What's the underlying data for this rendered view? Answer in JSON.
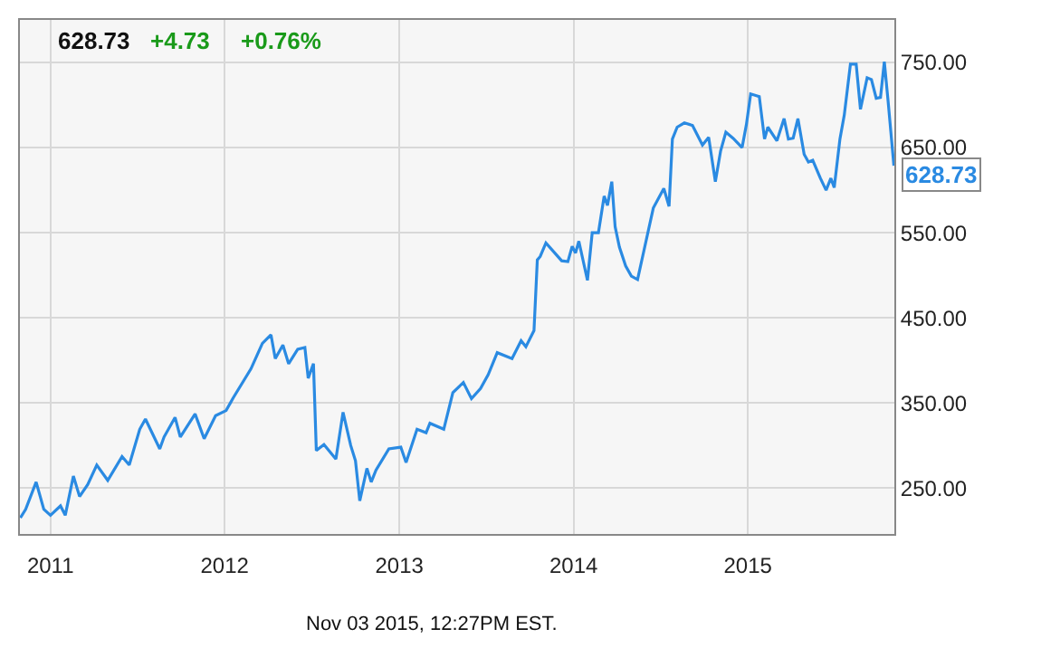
{
  "chart_data": {
    "type": "line",
    "annotations": [
      "628.73",
      "+4.73",
      "+0.76%",
      "Nov 03 2015, 12:27PM EST."
    ],
    "x": [
      "2010-10-30",
      "2010-11-10",
      "2010-12-02",
      "2010-12-18",
      "2011-01-01",
      "2011-01-22",
      "2011-02-01",
      "2011-02-18",
      "2011-03-03",
      "2011-03-20",
      "2011-04-08",
      "2011-05-01",
      "2011-05-31",
      "2011-06-15",
      "2011-07-07",
      "2011-07-19",
      "2011-08-18",
      "2011-08-27",
      "2011-09-19",
      "2011-09-30",
      "2011-10-31",
      "2011-11-19",
      "2011-12-13",
      "2012-01-04",
      "2012-01-19",
      "2012-02-25",
      "2012-03-20",
      "2012-04-07",
      "2012-04-16",
      "2012-05-02",
      "2012-05-14",
      "2012-06-02",
      "2012-06-17",
      "2012-06-24",
      "2012-07-05",
      "2012-07-11",
      "2012-07-27",
      "2012-08-21",
      "2012-09-05",
      "2012-09-21",
      "2012-10-01",
      "2012-10-10",
      "2012-10-25",
      "2012-11-03",
      "2012-11-13",
      "2012-12-10",
      "2013-01-04",
      "2013-01-15",
      "2013-02-07",
      "2013-02-26",
      "2013-03-06",
      "2013-04-04",
      "2013-04-23",
      "2013-05-15",
      "2013-06-01",
      "2013-06-20",
      "2013-07-06",
      "2013-07-25",
      "2013-08-25",
      "2013-09-13",
      "2013-09-23",
      "2013-10-10",
      "2013-10-17",
      "2013-10-23",
      "2013-11-04",
      "2013-12-07",
      "2013-12-20",
      "2013-12-29",
      "2014-01-05",
      "2014-01-12",
      "2014-01-30",
      "2014-02-09",
      "2014-02-22",
      "2014-03-06",
      "2014-03-13",
      "2014-03-22",
      "2014-03-29",
      "2014-04-07",
      "2014-04-20",
      "2014-05-02",
      "2014-05-15",
      "2014-06-17",
      "2014-07-09",
      "2014-07-20",
      "2014-07-27",
      "2014-08-06",
      "2014-08-21",
      "2014-09-07",
      "2014-09-28",
      "2014-10-11",
      "2014-10-25",
      "2014-11-05",
      "2014-11-16",
      "2014-12-01",
      "2014-12-20",
      "2014-12-29",
      "2015-01-07",
      "2015-01-25",
      "2015-02-05",
      "2015-02-12",
      "2015-03-03",
      "2015-03-18",
      "2015-03-27",
      "2015-04-06",
      "2015-04-16",
      "2015-04-29",
      "2015-05-08",
      "2015-05-17",
      "2015-06-02",
      "2015-06-14",
      "2015-06-24",
      "2015-07-01",
      "2015-07-13",
      "2015-07-22",
      "2015-08-04",
      "2015-08-16",
      "2015-08-25",
      "2015-09-08",
      "2015-09-17",
      "2015-09-27",
      "2015-10-06",
      "2015-10-14",
      "2015-10-22",
      "2015-11-03"
    ],
    "series": [
      {
        "color": "#2a8ae2",
        "values": [
          215,
          225,
          257,
          225,
          218,
          229,
          218,
          264,
          240,
          254,
          277,
          259,
          287,
          277,
          319,
          331,
          296,
          310,
          333,
          310,
          337,
          308,
          335,
          341,
          356,
          390,
          420,
          430,
          402,
          418,
          396,
          413,
          415,
          379,
          396,
          294,
          301,
          284,
          339,
          300,
          282,
          235,
          273,
          257,
          271,
          296,
          298,
          280,
          319,
          315,
          326,
          319,
          362,
          374,
          355,
          367,
          383,
          409,
          402,
          423,
          416,
          435,
          518,
          522,
          538,
          517,
          516,
          534,
          526,
          540,
          494,
          550,
          550,
          593,
          582,
          610,
          557,
          533,
          511,
          499,
          495,
          579,
          602,
          581,
          660,
          674,
          679,
          676,
          653,
          662,
          610,
          646,
          668,
          661,
          650,
          677,
          713,
          710,
          660,
          674,
          658,
          684,
          660,
          661,
          684,
          642,
          633,
          635,
          614,
          600,
          614,
          603,
          660,
          688,
          748,
          748,
          695,
          732,
          730,
          708,
          709,
          751,
          704,
          628.73
        ],
        "value_labels": [
          null,
          null,
          null,
          null,
          null,
          null,
          null,
          null,
          null,
          null,
          null,
          null,
          null,
          null,
          null,
          null,
          null,
          null,
          null,
          null,
          null,
          null,
          null,
          null,
          null,
          null,
          null,
          null,
          null,
          null,
          null,
          null,
          null,
          null,
          null,
          null,
          null,
          null,
          null,
          null,
          null,
          null,
          null,
          null,
          null,
          null,
          null,
          null,
          null,
          null,
          null,
          null,
          null,
          null,
          null,
          null,
          null,
          null,
          null,
          null,
          null,
          null,
          null,
          null,
          null,
          null,
          null,
          null,
          null,
          null,
          null,
          null,
          null,
          null,
          null,
          null,
          null,
          null,
          null,
          null,
          null,
          null,
          null,
          null,
          null,
          null,
          null,
          null,
          null,
          null,
          null,
          null,
          null,
          null,
          null,
          null,
          null,
          null,
          null,
          null,
          null,
          null,
          null,
          null,
          null,
          null,
          null,
          null,
          null,
          null,
          null,
          null,
          null,
          null,
          null,
          null,
          null,
          null,
          null,
          null,
          null,
          null,
          null,
          "628.73"
        ]
      }
    ],
    "xlim": [
      "2010-10-29",
      "2015-11-04"
    ],
    "xticks": [
      {
        "value": "2011-01-01",
        "label": "2011"
      },
      {
        "value": "2012-01-01",
        "label": "2012"
      },
      {
        "value": "2013-01-01",
        "label": "2013"
      },
      {
        "value": "2014-01-01",
        "label": "2014"
      },
      {
        "value": "2015-01-01",
        "label": "2015"
      }
    ],
    "ylim": [
      196,
      800
    ],
    "yticks": [
      {
        "value": 250,
        "label": "250.00"
      },
      {
        "value": 350,
        "label": "350.00"
      },
      {
        "value": 450,
        "label": "450.00"
      },
      {
        "value": 550,
        "label": "550.00"
      },
      {
        "value": 650,
        "label": "650.00"
      },
      {
        "value": 750,
        "label": "750.00"
      }
    ],
    "grid": true,
    "marker": "none",
    "line_style": "solid"
  }
}
